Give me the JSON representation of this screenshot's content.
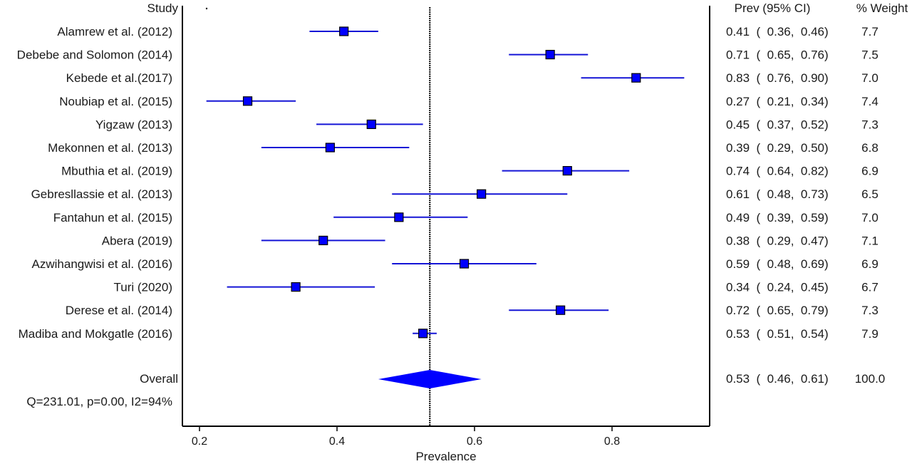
{
  "chart_data": {
    "type": "forest",
    "study_header": "Study",
    "estimate_header": "Prev (95% CI)",
    "weight_header": "% Weight",
    "xlabel": "Prevalence",
    "xticks": [
      "0.2",
      "0.4",
      "0.6",
      "0.8"
    ],
    "xlim": [
      0.18,
      0.94
    ],
    "reference_line": 0.535,
    "studies": [
      {
        "label": "Alamrew et al. (2012)",
        "est": 0.41,
        "lo": 0.36,
        "hi": 0.46,
        "ci_text": "0.41  (  0.36,  0.46)",
        "weight": "7.7"
      },
      {
        "label": "Debebe and Solomon (2014)",
        "est": 0.71,
        "lo": 0.65,
        "hi": 0.765,
        "ci_text": "0.71  (  0.65,  0.76)",
        "weight": "7.5"
      },
      {
        "label": "Kebede et al.(2017)",
        "est": 0.835,
        "lo": 0.755,
        "hi": 0.905,
        "ci_text": "0.83  (  0.76,  0.90)",
        "weight": "7.0"
      },
      {
        "label": "Noubiap et al. (2015)",
        "est": 0.27,
        "lo": 0.21,
        "hi": 0.34,
        "ci_text": "0.27  (  0.21,  0.34)",
        "weight": "7.4"
      },
      {
        "label": "Yigzaw (2013)",
        "est": 0.45,
        "lo": 0.37,
        "hi": 0.525,
        "ci_text": "0.45  (  0.37,  0.52)",
        "weight": "7.3"
      },
      {
        "label": "Mekonnen et al. (2013)",
        "est": 0.39,
        "lo": 0.29,
        "hi": 0.505,
        "ci_text": "0.39  (  0.29,  0.50)",
        "weight": "6.8"
      },
      {
        "label": "Mbuthia et al. (2019)",
        "est": 0.735,
        "lo": 0.64,
        "hi": 0.825,
        "ci_text": "0.74  (  0.64,  0.82)",
        "weight": "6.9"
      },
      {
        "label": "Gebresllassie et al. (2013)",
        "est": 0.61,
        "lo": 0.48,
        "hi": 0.735,
        "ci_text": "0.61  (  0.48,  0.73)",
        "weight": "6.5"
      },
      {
        "label": "Fantahun et al. (2015)",
        "est": 0.49,
        "lo": 0.395,
        "hi": 0.59,
        "ci_text": "0.49  (  0.39,  0.59)",
        "weight": "7.0"
      },
      {
        "label": "Abera (2019)",
        "est": 0.38,
        "lo": 0.29,
        "hi": 0.47,
        "ci_text": "0.38  (  0.29,  0.47)",
        "weight": "7.1"
      },
      {
        "label": "Azwihangwisi et al. (2016)",
        "est": 0.585,
        "lo": 0.48,
        "hi": 0.69,
        "ci_text": "0.59  (  0.48,  0.69)",
        "weight": "6.9"
      },
      {
        "label": "Turi (2020)",
        "est": 0.34,
        "lo": 0.24,
        "hi": 0.455,
        "ci_text": "0.34  (  0.24,  0.45)",
        "weight": "6.7"
      },
      {
        "label": "Derese et al. (2014)",
        "est": 0.725,
        "lo": 0.65,
        "hi": 0.795,
        "ci_text": "0.72  (  0.65,  0.79)",
        "weight": "7.3"
      },
      {
        "label": "Madiba and Mokgatle (2016)",
        "est": 0.525,
        "lo": 0.51,
        "hi": 0.545,
        "ci_text": "0.53  (  0.51,  0.54)",
        "weight": "7.9"
      }
    ],
    "overall": {
      "label": "Overall",
      "est": 0.535,
      "lo": 0.46,
      "hi": 0.61,
      "ci_text": "0.53  (  0.46,  0.61)",
      "weight": "100.0"
    },
    "heterogeneity": "Q=231.01, p=0.00, I2=94%"
  },
  "colors": {
    "marker": "#0000ff",
    "marker_border": "#000000",
    "ci_line": "#1515d6",
    "axis": "#000000"
  }
}
